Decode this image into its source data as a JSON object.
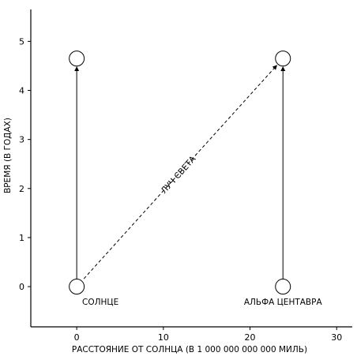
{
  "chart_data": {
    "type": "diagram",
    "xlabel": "РАССТОЯНИЕ ОТ СОЛНЦА (В 1 000 000 000 000 МИЛЬ)",
    "ylabel": "ВРЕМЯ (В ГОДАХ)",
    "xlim": [
      -5.3,
      31.8
    ],
    "ylim": [
      -0.82,
      5.65
    ],
    "xticks": [
      0,
      10,
      20,
      30
    ],
    "yticks": [
      0,
      1,
      2,
      3,
      4,
      5
    ],
    "grid": false,
    "points": [
      {
        "label": "СОЛНЦЕ",
        "x": 0,
        "y": 0
      },
      {
        "label": "",
        "x": 0,
        "y": 4.65
      },
      {
        "label": "АЛЬФА ЦЕНТАВРА",
        "x": 23.8,
        "y": 0
      },
      {
        "label": "",
        "x": 23.8,
        "y": 4.65
      }
    ],
    "worldlines": [
      {
        "from": [
          0,
          0
        ],
        "to": [
          0,
          4.65
        ],
        "style": "solid"
      },
      {
        "from": [
          23.8,
          0
        ],
        "to": [
          23.8,
          4.65
        ],
        "style": "solid"
      }
    ],
    "light_ray": {
      "label": "ЛУЧ СВЕТА",
      "from": [
        0,
        0
      ],
      "to": [
        23.8,
        4.65
      ],
      "style": "dashed"
    }
  }
}
